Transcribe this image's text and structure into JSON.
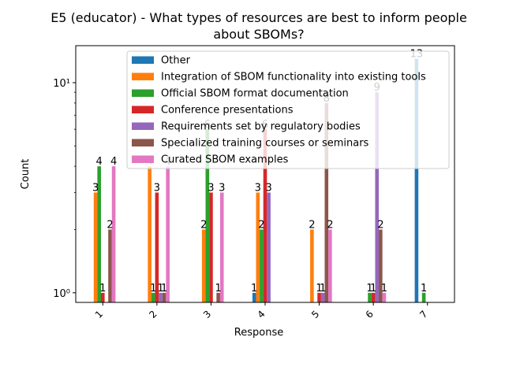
{
  "chart_data": {
    "type": "bar",
    "title": "E5 (educator) - What types of resources are best to inform people about SBOMs?",
    "title_lines": [
      "E5 (educator) - What types of resources are best to inform people",
      "about SBOMs?"
    ],
    "xlabel": "Response",
    "ylabel": "Count",
    "yscale": "log",
    "ylim": [
      0.9,
      15
    ],
    "yticks": [
      1,
      10
    ],
    "ytick_labels": [
      "10⁰",
      "10¹"
    ],
    "legend_position": "upper center",
    "categories": [
      "1",
      "2",
      "3",
      "4",
      "5",
      "6",
      "7"
    ],
    "series": [
      {
        "name": "Other",
        "color": "#1f77b4",
        "values": [
          null,
          null,
          null,
          1,
          null,
          null,
          13
        ]
      },
      {
        "name": "Integration of SBOM functionality into existing tools",
        "color": "#ff7f0e",
        "values": [
          3,
          4,
          2,
          3,
          2,
          null,
          null
        ]
      },
      {
        "name": "Official SBOM format documentation",
        "color": "#2ca02c",
        "values": [
          4,
          1,
          6,
          2,
          null,
          1,
          1
        ]
      },
      {
        "name": "Conference presentations",
        "color": "#d62728",
        "values": [
          1,
          3,
          3,
          6,
          1,
          1,
          null
        ]
      },
      {
        "name": "Requirements set by regulatory bodies",
        "color": "#9467bd",
        "values": [
          null,
          1,
          null,
          3,
          1,
          9,
          null
        ]
      },
      {
        "name": "Specialized training courses or seminars",
        "color": "#8c564b",
        "values": [
          2,
          1,
          1,
          null,
          8,
          2,
          null
        ]
      },
      {
        "name": "Curated SBOM examples",
        "color": "#e377c2",
        "values": [
          4,
          4,
          3,
          null,
          2,
          1,
          null
        ]
      }
    ]
  }
}
